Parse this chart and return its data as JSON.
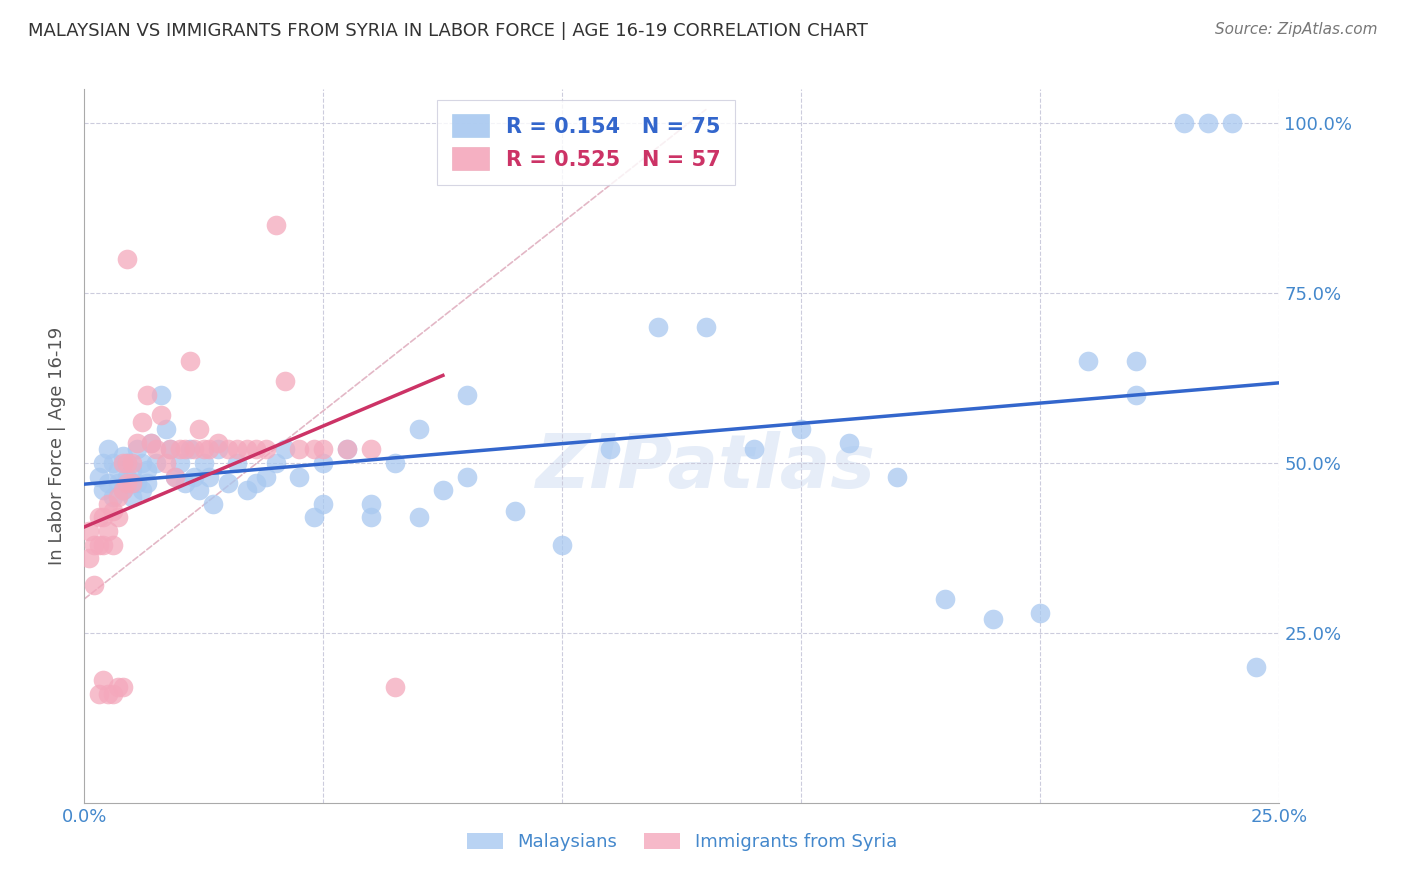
{
  "title": "MALAYSIAN VS IMMIGRANTS FROM SYRIA IN LABOR FORCE | AGE 16-19 CORRELATION CHART",
  "source": "Source: ZipAtlas.com",
  "ylabel": "In Labor Force | Age 16-19",
  "xlim": [
    0.0,
    0.25
  ],
  "ylim": [
    0.0,
    1.05
  ],
  "yticks": [
    0.0,
    0.25,
    0.5,
    0.75,
    1.0
  ],
  "ytick_labels": [
    "",
    "25.0%",
    "50.0%",
    "75.0%",
    "100.0%"
  ],
  "xticks": [
    0.0,
    0.05,
    0.1,
    0.15,
    0.2,
    0.25
  ],
  "xtick_labels": [
    "0.0%",
    "",
    "",
    "",
    "",
    "25.0%"
  ],
  "blue_R": 0.154,
  "blue_N": 75,
  "pink_R": 0.525,
  "pink_N": 57,
  "blue_color": "#A8C8F0",
  "pink_color": "#F4A8BC",
  "blue_line_color": "#3366CC",
  "pink_line_color": "#CC3366",
  "diag_line_color": "#E0B0C0",
  "axis_label_color": "#4488CC",
  "title_color": "#333333",
  "watermark": "ZIPatlas",
  "blue_x": [
    0.003,
    0.004,
    0.004,
    0.005,
    0.005,
    0.006,
    0.006,
    0.007,
    0.007,
    0.008,
    0.008,
    0.009,
    0.009,
    0.01,
    0.01,
    0.011,
    0.011,
    0.012,
    0.012,
    0.013,
    0.013,
    0.014,
    0.015,
    0.016,
    0.017,
    0.018,
    0.019,
    0.02,
    0.021,
    0.022,
    0.023,
    0.024,
    0.025,
    0.026,
    0.027,
    0.028,
    0.03,
    0.032,
    0.034,
    0.036,
    0.038,
    0.04,
    0.042,
    0.045,
    0.048,
    0.05,
    0.055,
    0.06,
    0.065,
    0.07,
    0.075,
    0.08,
    0.09,
    0.1,
    0.11,
    0.12,
    0.13,
    0.14,
    0.15,
    0.16,
    0.17,
    0.18,
    0.19,
    0.2,
    0.21,
    0.22,
    0.23,
    0.235,
    0.24,
    0.245,
    0.05,
    0.06,
    0.07,
    0.08,
    0.22
  ],
  "blue_y": [
    0.48,
    0.5,
    0.46,
    0.52,
    0.47,
    0.5,
    0.45,
    0.49,
    0.47,
    0.51,
    0.46,
    0.5,
    0.48,
    0.49,
    0.45,
    0.52,
    0.47,
    0.5,
    0.46,
    0.49,
    0.47,
    0.53,
    0.5,
    0.6,
    0.55,
    0.52,
    0.48,
    0.5,
    0.47,
    0.52,
    0.48,
    0.46,
    0.5,
    0.48,
    0.44,
    0.52,
    0.47,
    0.5,
    0.46,
    0.47,
    0.48,
    0.5,
    0.52,
    0.48,
    0.42,
    0.5,
    0.52,
    0.42,
    0.5,
    0.42,
    0.46,
    0.48,
    0.43,
    0.38,
    0.52,
    0.7,
    0.7,
    0.52,
    0.55,
    0.53,
    0.48,
    0.3,
    0.27,
    0.28,
    0.65,
    0.6,
    1.0,
    1.0,
    1.0,
    0.2,
    0.44,
    0.44,
    0.55,
    0.6,
    0.65
  ],
  "pink_x": [
    0.001,
    0.001,
    0.002,
    0.002,
    0.003,
    0.003,
    0.004,
    0.004,
    0.005,
    0.005,
    0.006,
    0.006,
    0.007,
    0.007,
    0.008,
    0.008,
    0.009,
    0.009,
    0.01,
    0.01,
    0.011,
    0.012,
    0.013,
    0.014,
    0.015,
    0.016,
    0.017,
    0.018,
    0.019,
    0.02,
    0.021,
    0.022,
    0.023,
    0.024,
    0.025,
    0.026,
    0.028,
    0.03,
    0.032,
    0.034,
    0.036,
    0.038,
    0.04,
    0.042,
    0.045,
    0.048,
    0.05,
    0.055,
    0.06,
    0.065,
    0.003,
    0.004,
    0.005,
    0.006,
    0.007,
    0.008,
    0.009
  ],
  "pink_y": [
    0.4,
    0.36,
    0.38,
    0.32,
    0.42,
    0.38,
    0.42,
    0.38,
    0.44,
    0.4,
    0.43,
    0.38,
    0.45,
    0.42,
    0.5,
    0.46,
    0.5,
    0.47,
    0.5,
    0.47,
    0.53,
    0.56,
    0.6,
    0.53,
    0.52,
    0.57,
    0.5,
    0.52,
    0.48,
    0.52,
    0.52,
    0.65,
    0.52,
    0.55,
    0.52,
    0.52,
    0.53,
    0.52,
    0.52,
    0.52,
    0.52,
    0.52,
    0.85,
    0.62,
    0.52,
    0.52,
    0.52,
    0.52,
    0.52,
    0.17,
    0.16,
    0.18,
    0.16,
    0.16,
    0.17,
    0.17,
    0.8
  ]
}
